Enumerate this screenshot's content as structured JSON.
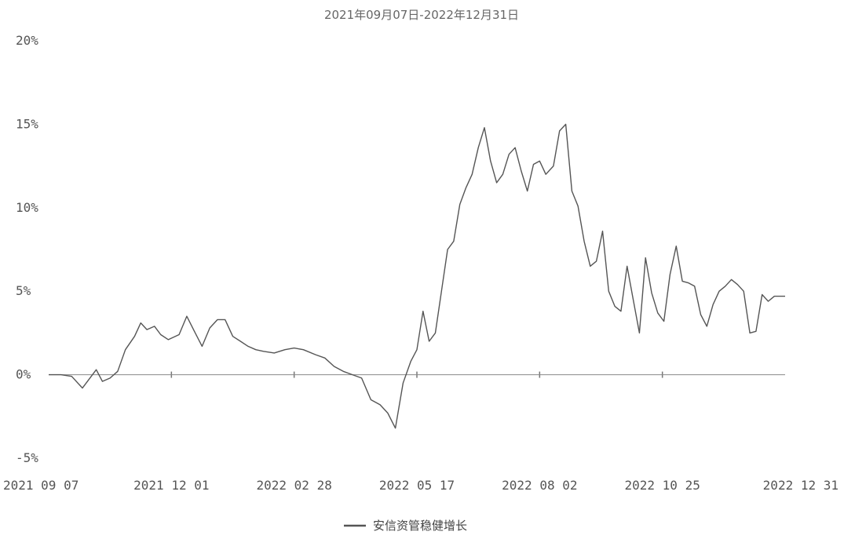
{
  "chart_data": {
    "type": "line",
    "title": "2021年09月07日-2022年12月31日",
    "xlabel": "",
    "ylabel": "",
    "x_tick_labels": [
      "2021 09 07",
      "2021 12 01",
      "2022 02 28",
      "2022 05 17",
      "2022 08 02",
      "2022 10 25",
      "2022 12 31"
    ],
    "y_tick_labels": [
      "-5%",
      "0%",
      "5%",
      "10%",
      "15%",
      "20%"
    ],
    "ylim": [
      -5,
      20
    ],
    "xlim": [
      "2021-09-07",
      "2022-12-31"
    ],
    "grid": false,
    "legend_position": "bottom-center",
    "series": [
      {
        "name": "安信资管稳健增长",
        "color": "#555555",
        "x": [
          "2021-09-07",
          "2021-09-15",
          "2021-09-22",
          "2021-09-29",
          "2021-10-08",
          "2021-10-12",
          "2021-10-17",
          "2021-10-22",
          "2021-10-27",
          "2021-11-02",
          "2021-11-06",
          "2021-11-10",
          "2021-11-15",
          "2021-11-19",
          "2021-11-24",
          "2021-12-01",
          "2021-12-06",
          "2021-12-11",
          "2021-12-16",
          "2021-12-21",
          "2021-12-26",
          "2021-12-31",
          "2022-01-05",
          "2022-01-10",
          "2022-01-15",
          "2022-01-20",
          "2022-01-25",
          "2022-02-01",
          "2022-02-08",
          "2022-02-14",
          "2022-02-20",
          "2022-02-28",
          "2022-03-06",
          "2022-03-12",
          "2022-03-18",
          "2022-03-24",
          "2022-03-30",
          "2022-04-05",
          "2022-04-11",
          "2022-04-16",
          "2022-04-21",
          "2022-04-26",
          "2022-05-01",
          "2022-05-05",
          "2022-05-09",
          "2022-05-13",
          "2022-05-17",
          "2022-05-21",
          "2022-05-25",
          "2022-05-29",
          "2022-06-02",
          "2022-06-06",
          "2022-06-10",
          "2022-06-14",
          "2022-06-18",
          "2022-06-22",
          "2022-06-26",
          "2022-06-30",
          "2022-07-04",
          "2022-07-08",
          "2022-07-12",
          "2022-07-16",
          "2022-07-20",
          "2022-07-24",
          "2022-07-28",
          "2022-08-02",
          "2022-08-06",
          "2022-08-10",
          "2022-08-14",
          "2022-08-18",
          "2022-08-22",
          "2022-08-26",
          "2022-08-30",
          "2022-09-03",
          "2022-09-07",
          "2022-09-11",
          "2022-09-15",
          "2022-09-19",
          "2022-09-23",
          "2022-09-27",
          "2022-10-01",
          "2022-10-05",
          "2022-10-09",
          "2022-10-13",
          "2022-10-17",
          "2022-10-21",
          "2022-10-25",
          "2022-10-29",
          "2022-11-02",
          "2022-11-06",
          "2022-11-10",
          "2022-11-14",
          "2022-11-18",
          "2022-11-22",
          "2022-11-26",
          "2022-11-30",
          "2022-12-04",
          "2022-12-08",
          "2022-12-12",
          "2022-12-16",
          "2022-12-20",
          "2022-12-24",
          "2022-12-31"
        ],
        "y": [
          0,
          0,
          -0.1,
          -0.8,
          0.3,
          -0.4,
          -0.2,
          0.2,
          1.5,
          2.3,
          3.1,
          2.7,
          2.9,
          2.4,
          2.1,
          2.4,
          3.5,
          2.6,
          1.7,
          2.8,
          3.3,
          3.3,
          2.3,
          2.0,
          1.7,
          1.5,
          1.4,
          1.3,
          1.5,
          1.6,
          1.5,
          1.2,
          1.0,
          0.5,
          0.2,
          0.0,
          -0.2,
          -1.5,
          -1.8,
          -2.3,
          -3.2,
          -0.5,
          0.8,
          1.5,
          3.8,
          2.0,
          2.5,
          5.0,
          7.5,
          8.0,
          10.2,
          11.2,
          12.0,
          13.6,
          14.8,
          12.8,
          11.5,
          12.0,
          13.2,
          13.6,
          12.2,
          11.0,
          12.6,
          12.8,
          12.0,
          12.5,
          14.6,
          15.0,
          11.0,
          10.1,
          8.0,
          6.5,
          6.8,
          8.6,
          5.0,
          4.1,
          3.8,
          6.5,
          4.5,
          2.5,
          7.0,
          4.9,
          3.7,
          3.2,
          6.0,
          7.7,
          5.6,
          5.5,
          5.3,
          3.6,
          2.9,
          4.2,
          5.0,
          5.3,
          5.7,
          5.4,
          5.0,
          2.5,
          2.6,
          4.8,
          4.4,
          4.7,
          4.7
        ]
      }
    ]
  }
}
